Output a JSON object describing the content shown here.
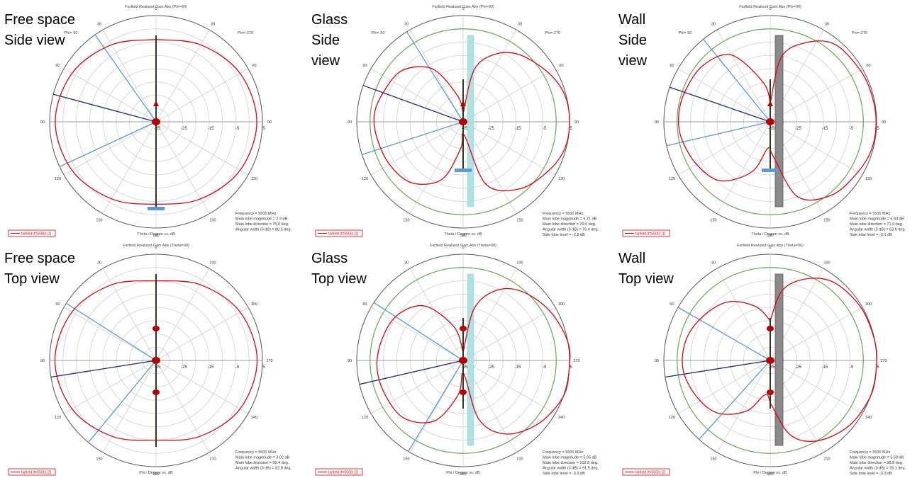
{
  "chart_data": [
    {
      "type": "polar",
      "label": "Free space\nSide view",
      "title": "Farfield Realized Gain Abs (Phi=90)",
      "angle_labels": [
        "0",
        "30",
        "60",
        "90",
        "120",
        "150",
        "180",
        "150",
        "120",
        "90",
        "60",
        "30"
      ],
      "corner_labels": [
        "Phi= 90",
        "Phi=-270"
      ],
      "radial_labels": [
        "-35",
        "-25",
        "-15",
        "-5",
        "5"
      ],
      "rlim": [
        -35,
        5
      ],
      "axis_label": "Theta / Degree vs. dB",
      "legend": "farfield (f=5500) [1]",
      "info": [
        "Frequency = 5500 MHz",
        "Main lobe magnitude = 2.9 dB",
        "Main lobe direction = 75.0 deg.",
        "Angular width (3 dB) = 80.5 deg."
      ],
      "obstacle": "none",
      "main_lobe_direction": 75,
      "beam_width": 80,
      "pattern": [
        [
          0,
          -4
        ],
        [
          30,
          -1.5
        ],
        [
          60,
          1.5
        ],
        [
          90,
          2.9
        ],
        [
          120,
          1.5
        ],
        [
          150,
          -1.5
        ],
        [
          180,
          -4
        ],
        [
          210,
          -1.5
        ],
        [
          240,
          1.5
        ],
        [
          270,
          2.9
        ],
        [
          300,
          1.5
        ],
        [
          330,
          -1.5
        ],
        [
          360,
          -4
        ]
      ]
    },
    {
      "type": "polar",
      "label": "Glass\nSide\nview",
      "title": "Farfield Realized Gain Abs (Phi=90)",
      "angle_labels": [
        "0",
        "30",
        "60",
        "90",
        "120",
        "150",
        "180",
        "150",
        "120",
        "90",
        "60",
        "30"
      ],
      "corner_labels": [
        "Phi= 90",
        "Phi=-270"
      ],
      "radial_labels": [
        "-35",
        "-25",
        "-15",
        "-5",
        "5"
      ],
      "rlim": [
        -35,
        5
      ],
      "axis_label": "Theta / Degree vs. dB",
      "legend": "farfield (f=5500) [1]",
      "info": [
        "Frequency = 5500 MHz",
        "Main lobe magnitude = 5.71 dB",
        "Main lobe direction = 70.0 deg.",
        "Angular width (3 dB) = 76.4 deg.",
        "Side lobe level = -2.8 dB"
      ],
      "obstacle": "glass",
      "main_lobe_direction": 70,
      "beam_width": 76,
      "pattern": [
        [
          0,
          -32
        ],
        [
          12,
          -15
        ],
        [
          25,
          -7
        ],
        [
          40,
          -2
        ],
        [
          60,
          2
        ],
        [
          75,
          4.5
        ],
        [
          90,
          5.2
        ],
        [
          105,
          4.5
        ],
        [
          120,
          2
        ],
        [
          140,
          -2
        ],
        [
          160,
          -10
        ],
        [
          175,
          -30
        ],
        [
          185,
          -25
        ],
        [
          200,
          -12
        ],
        [
          220,
          -5
        ],
        [
          240,
          -3
        ],
        [
          260,
          -2
        ],
        [
          275,
          -1.5
        ],
        [
          290,
          -3
        ],
        [
          310,
          -5
        ],
        [
          330,
          -12
        ],
        [
          348,
          -25
        ],
        [
          360,
          -32
        ]
      ]
    },
    {
      "type": "polar",
      "label": "Wall\nSide\nview",
      "title": "Farfield Realized Gain Abs (Phi=90)",
      "angle_labels": [
        "0",
        "30",
        "60",
        "90",
        "120",
        "150",
        "180",
        "150",
        "120",
        "90",
        "60",
        "30"
      ],
      "corner_labels": [
        "Phi= 90",
        "Phi=-270"
      ],
      "radial_labels": [
        "-35",
        "-25",
        "-15",
        "-5",
        "5"
      ],
      "rlim": [
        -35,
        5
      ],
      "axis_label": "Theta / Degree vs. dB",
      "legend": "farfield (f=5500) [1]",
      "info": [
        "Frequency = 5500 MHz",
        "Main lobe magnitude = 5.93 dB",
        "Main lobe direction = 71.0 deg.",
        "Angular width (3 dB) = 63.6 deg.",
        "Side lobe level = -3.1 dB"
      ],
      "obstacle": "wall",
      "main_lobe_direction": 71,
      "beam_width": 64,
      "pattern": [
        [
          0,
          -28
        ],
        [
          10,
          -10
        ],
        [
          25,
          -2
        ],
        [
          40,
          3
        ],
        [
          60,
          4
        ],
        [
          75,
          4.5
        ],
        [
          90,
          4.8
        ],
        [
          105,
          4.5
        ],
        [
          120,
          3
        ],
        [
          140,
          1
        ],
        [
          160,
          -5
        ],
        [
          175,
          -22
        ],
        [
          185,
          -25
        ],
        [
          200,
          -15
        ],
        [
          220,
          -6
        ],
        [
          240,
          -3
        ],
        [
          260,
          -1
        ],
        [
          275,
          -0.5
        ],
        [
          290,
          -1
        ],
        [
          310,
          -2
        ],
        [
          330,
          -6
        ],
        [
          350,
          -20
        ],
        [
          360,
          -28
        ]
      ]
    },
    {
      "type": "polar",
      "label": "Free space\nTop view",
      "title": "Farfield Realized Gain Abs (Theta=90)",
      "angle_labels": [
        "0",
        "330",
        "300",
        "270",
        "240",
        "210",
        "180",
        "150",
        "120",
        "90",
        "60",
        "30"
      ],
      "corner_labels": [
        "",
        ""
      ],
      "radial_labels": [
        "-35",
        "-25",
        "-15",
        "-5",
        "5"
      ],
      "rlim": [
        -35,
        5
      ],
      "axis_label": "Phi / Degree vs. dB",
      "legend": "farfield (f=5500) [2]",
      "info": [
        "Frequency = 5500 MHz",
        "Main lobe magnitude = 3.02 dB",
        "Main lobe direction = 99.4 deg.",
        "Angular width (3 dB) = 82.8 deg."
      ],
      "obstacle": "none",
      "main_lobe_direction": 99,
      "beam_width": 83,
      "pattern": [
        [
          0,
          -5
        ],
        [
          30,
          -2
        ],
        [
          60,
          1.5
        ],
        [
          90,
          3
        ],
        [
          120,
          1.5
        ],
        [
          150,
          -2
        ],
        [
          180,
          -5
        ],
        [
          210,
          -2
        ],
        [
          240,
          1.5
        ],
        [
          270,
          3
        ],
        [
          300,
          1.5
        ],
        [
          330,
          -2
        ],
        [
          360,
          -5
        ]
      ]
    },
    {
      "type": "polar",
      "label": "Glass\nTop view",
      "title": "Farfield Realized Gain Abs (Theta=90)",
      "angle_labels": [
        "0",
        "330",
        "300",
        "270",
        "240",
        "210",
        "180",
        "150",
        "120",
        "90",
        "60",
        "30"
      ],
      "corner_labels": [
        "",
        ""
      ],
      "radial_labels": [
        "-35",
        "-25",
        "-15",
        "-5",
        "5"
      ],
      "rlim": [
        -35,
        5
      ],
      "axis_label": "Phi / Degree vs. dB",
      "legend": "farfield (f=5500) [2]",
      "info": [
        "Frequency = 5500 MHz",
        "Main lobe magnitude = 5.65 dB",
        "Main lobe direction = 102.8 deg.",
        "Angular width (3 dB) = 91.5 deg.",
        "Side lobe level = -3.9 dB"
      ],
      "obstacle": "glass",
      "main_lobe_direction": 103,
      "beam_width": 92,
      "pattern": [
        [
          0,
          -32
        ],
        [
          12,
          -15
        ],
        [
          25,
          -6
        ],
        [
          40,
          -1
        ],
        [
          60,
          2.5
        ],
        [
          80,
          5
        ],
        [
          95,
          5.6
        ],
        [
          110,
          5
        ],
        [
          130,
          2
        ],
        [
          150,
          -3
        ],
        [
          165,
          -12
        ],
        [
          178,
          -30
        ],
        [
          188,
          -22
        ],
        [
          205,
          -10
        ],
        [
          225,
          -4
        ],
        [
          245,
          -3
        ],
        [
          265,
          -2.5
        ],
        [
          285,
          -3.5
        ],
        [
          305,
          -5
        ],
        [
          325,
          -10
        ],
        [
          345,
          -22
        ],
        [
          360,
          -32
        ]
      ]
    },
    {
      "type": "polar",
      "label": "Wall\nTop view",
      "title": "Farfield Realized Gain Abs (Theta=90)",
      "angle_labels": [
        "0",
        "330",
        "300",
        "270",
        "240",
        "210",
        "180",
        "150",
        "120",
        "90",
        "60",
        "30"
      ],
      "corner_labels": [
        "",
        ""
      ],
      "radial_labels": [
        "-35",
        "-25",
        "-15",
        "-5",
        "5"
      ],
      "rlim": [
        -35,
        5
      ],
      "axis_label": "Phi / Degree vs. dB",
      "legend": "farfield (f=5500) [2]",
      "info": [
        "Frequency = 5500 MHz",
        "Main lobe magnitude = 5.59 dB",
        "Main lobe direction = 98.8 deg.",
        "Angular width (3 dB) = 78.1 deg.",
        "Side lobe level = -3.3 dB"
      ],
      "obstacle": "wall",
      "main_lobe_direction": 99,
      "beam_width": 78,
      "pattern": [
        [
          0,
          -20
        ],
        [
          10,
          -8
        ],
        [
          25,
          -1
        ],
        [
          40,
          3
        ],
        [
          60,
          4.5
        ],
        [
          80,
          5.2
        ],
        [
          95,
          5.5
        ],
        [
          110,
          5
        ],
        [
          130,
          3.5
        ],
        [
          150,
          0
        ],
        [
          165,
          -6
        ],
        [
          178,
          -18
        ],
        [
          188,
          -22
        ],
        [
          205,
          -14
        ],
        [
          225,
          -7
        ],
        [
          245,
          -4
        ],
        [
          265,
          -2
        ],
        [
          285,
          -2.5
        ],
        [
          305,
          -5
        ],
        [
          325,
          -8
        ],
        [
          345,
          -14
        ],
        [
          360,
          -20
        ]
      ]
    }
  ],
  "colors": {
    "pattern": "#e0000b",
    "beam": "#5b9bd5",
    "direction": "#1a2a7a",
    "grid": "#cfcfcf",
    "ref": "#6aa84f",
    "glass": "#a8dfe0",
    "wall": "#8a8a8a",
    "element": "#b80000"
  }
}
